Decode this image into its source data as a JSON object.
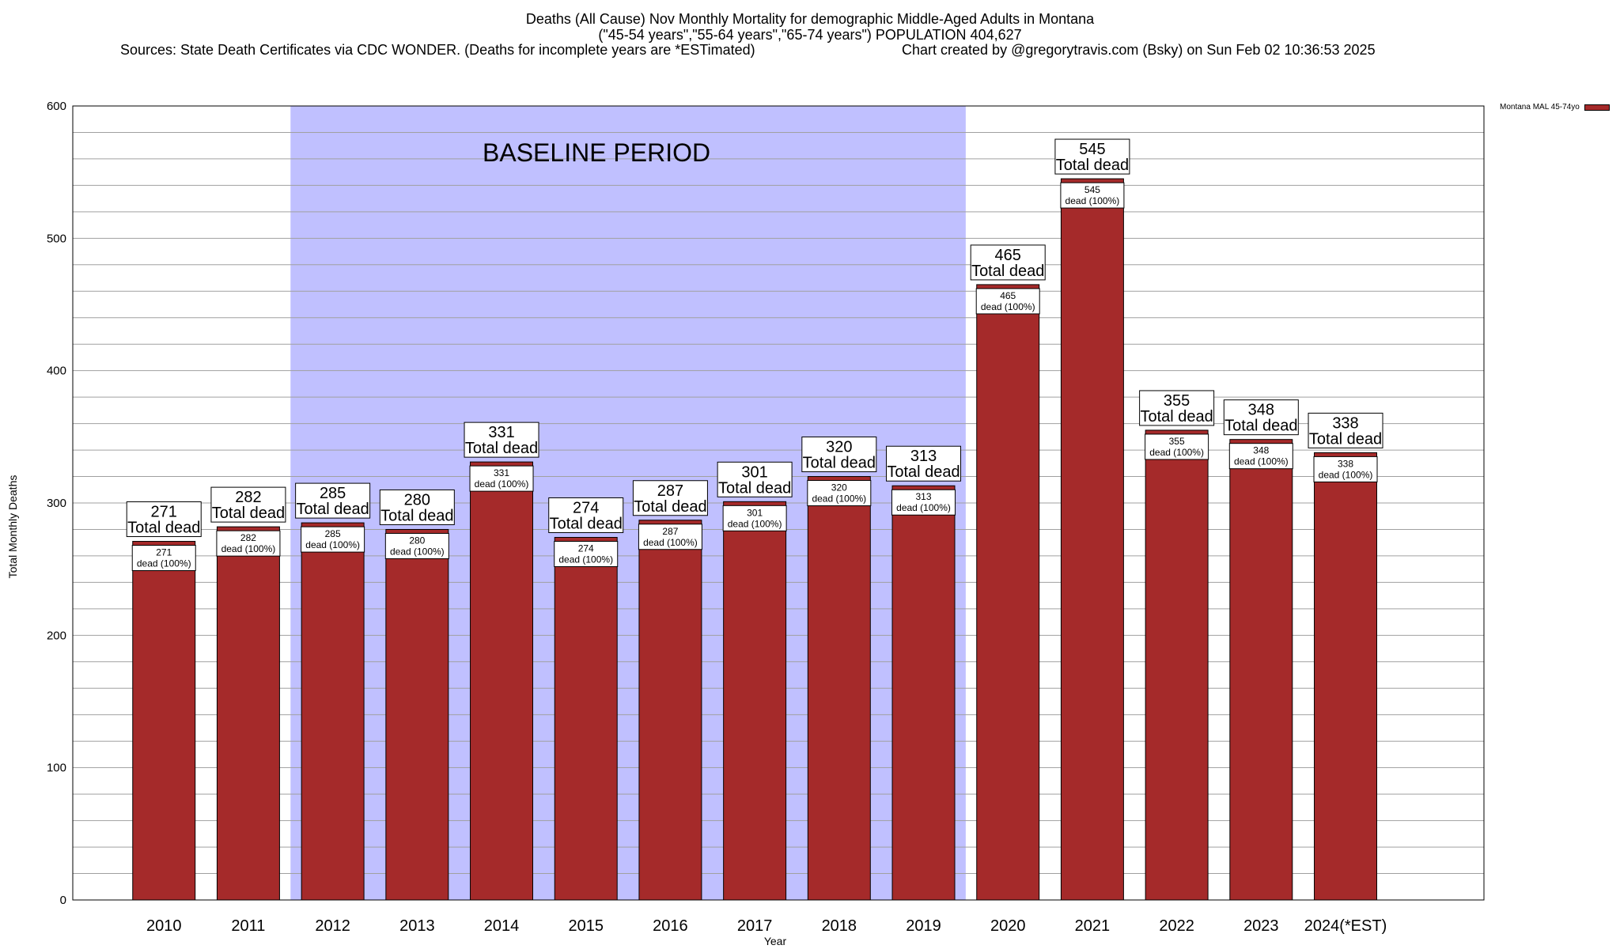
{
  "header": {
    "title_line1": "Deaths (All Cause) Nov Monthly Mortality for demographic Middle-Aged Adults in Montana",
    "title_line2": "(\"45-54 years\",\"55-64 years\",\"65-74 years\") POPULATION 404,627",
    "sources": "Sources: State Death Certificates via CDC WONDER. (Deaths for incomplete years are *ESTimated)",
    "credit": "Chart created by @gregorytravis.com (Bsky) on Sun Feb 02 10:36:53 2025"
  },
  "legend": {
    "label": "Montana MAL 45-74yo"
  },
  "colors": {
    "bar": "#a52a2a",
    "baseline_band": "#c0c0ff",
    "grid": "#a0a0a0"
  },
  "chart_data": {
    "type": "bar",
    "title": "Deaths (All Cause) Nov Monthly Mortality for demographic Middle-Aged Adults in Montana",
    "xlabel": "Year",
    "ylabel": "Total Monthly Deaths",
    "ylim": [
      0,
      600
    ],
    "yticks": [
      0,
      100,
      200,
      300,
      400,
      500,
      600
    ],
    "minor_step": 20,
    "categories": [
      "2010",
      "2011",
      "2012",
      "2013",
      "2014",
      "2015",
      "2016",
      "2017",
      "2018",
      "2019",
      "2020",
      "2021",
      "2022",
      "2023",
      "2024(*EST)"
    ],
    "series": [
      {
        "name": "Montana MAL 45-74yo",
        "values": [
          271,
          282,
          285,
          280,
          331,
          274,
          287,
          301,
          320,
          313,
          465,
          545,
          355,
          348,
          338
        ]
      }
    ],
    "baseline_period": {
      "label": "BASELINE PERIOD",
      "start": "2012",
      "end": "2019"
    },
    "label_total_suffix": "Total dead",
    "label_inner_suffix": "dead (100%)"
  }
}
